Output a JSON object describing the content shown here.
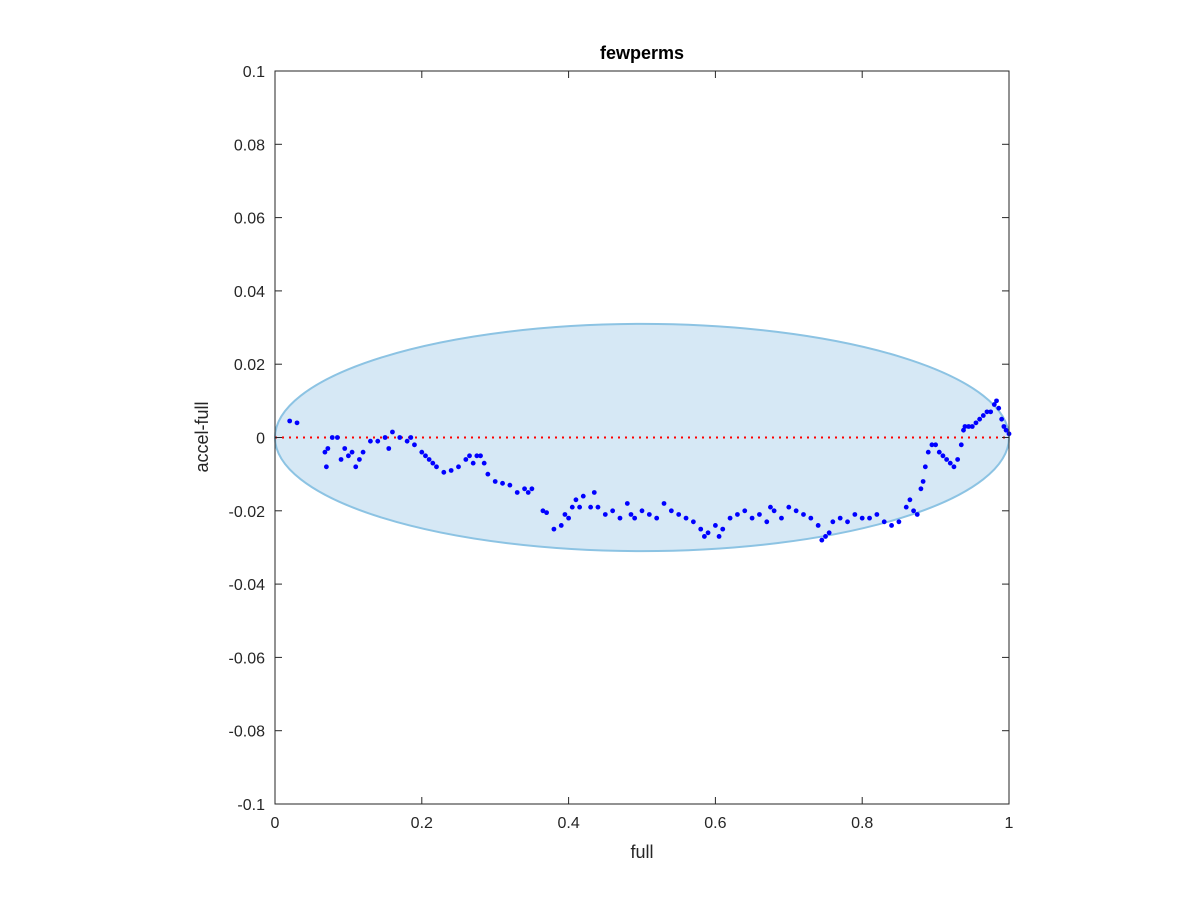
{
  "chart_data": {
    "type": "scatter",
    "title": "fewperms",
    "xlabel": "full",
    "ylabel": "accel-full",
    "xlim": [
      0,
      1
    ],
    "ylim": [
      -0.1,
      0.1
    ],
    "grid": false,
    "xticks": [
      0,
      0.2,
      0.4,
      0.6,
      0.8,
      1
    ],
    "xtick_labels": [
      "0",
      "0.2",
      "0.4",
      "0.6",
      "0.8",
      "1"
    ],
    "yticks": [
      -0.1,
      -0.08,
      -0.06,
      -0.04,
      -0.02,
      0,
      0.02,
      0.04,
      0.06,
      0.08,
      0.1
    ],
    "ytick_labels": [
      "-0.1",
      "-0.08",
      "-0.06",
      "-0.04",
      "-0.02",
      "0",
      "0.02",
      "0.04",
      "0.06",
      "0.08",
      "0.1"
    ],
    "reference_line": {
      "y": 0,
      "style": "dotted",
      "color": "#ff0000"
    },
    "ellipse": {
      "center": [
        0.5,
        0
      ],
      "radius_x": 0.5,
      "radius_y": 0.031,
      "fill": "#d6e8f5",
      "stroke": "#8cc3e3"
    },
    "marker_color": "#0000ff",
    "points": [
      [
        0.02,
        0.0045
      ],
      [
        0.03,
        0.004
      ],
      [
        0.068,
        -0.004
      ],
      [
        0.07,
        -0.008
      ],
      [
        0.072,
        -0.003
      ],
      [
        0.078,
        0.0
      ],
      [
        0.085,
        0.0
      ],
      [
        0.09,
        -0.006
      ],
      [
        0.095,
        -0.003
      ],
      [
        0.1,
        -0.005
      ],
      [
        0.105,
        -0.004
      ],
      [
        0.11,
        -0.008
      ],
      [
        0.115,
        -0.006
      ],
      [
        0.12,
        -0.004
      ],
      [
        0.13,
        -0.001
      ],
      [
        0.14,
        -0.001
      ],
      [
        0.15,
        0.0
      ],
      [
        0.155,
        -0.003
      ],
      [
        0.16,
        0.0015
      ],
      [
        0.17,
        0.0
      ],
      [
        0.18,
        -0.001
      ],
      [
        0.185,
        0.0
      ],
      [
        0.19,
        -0.002
      ],
      [
        0.2,
        -0.004
      ],
      [
        0.205,
        -0.005
      ],
      [
        0.21,
        -0.006
      ],
      [
        0.215,
        -0.007
      ],
      [
        0.22,
        -0.008
      ],
      [
        0.23,
        -0.0095
      ],
      [
        0.24,
        -0.009
      ],
      [
        0.25,
        -0.008
      ],
      [
        0.26,
        -0.006
      ],
      [
        0.265,
        -0.005
      ],
      [
        0.27,
        -0.007
      ],
      [
        0.275,
        -0.005
      ],
      [
        0.28,
        -0.005
      ],
      [
        0.285,
        -0.007
      ],
      [
        0.29,
        -0.01
      ],
      [
        0.3,
        -0.012
      ],
      [
        0.31,
        -0.0125
      ],
      [
        0.32,
        -0.013
      ],
      [
        0.33,
        -0.015
      ],
      [
        0.34,
        -0.014
      ],
      [
        0.345,
        -0.015
      ],
      [
        0.35,
        -0.014
      ],
      [
        0.365,
        -0.02
      ],
      [
        0.37,
        -0.0205
      ],
      [
        0.38,
        -0.025
      ],
      [
        0.39,
        -0.024
      ],
      [
        0.395,
        -0.021
      ],
      [
        0.4,
        -0.022
      ],
      [
        0.405,
        -0.019
      ],
      [
        0.41,
        -0.017
      ],
      [
        0.415,
        -0.019
      ],
      [
        0.42,
        -0.016
      ],
      [
        0.43,
        -0.019
      ],
      [
        0.435,
        -0.015
      ],
      [
        0.44,
        -0.019
      ],
      [
        0.45,
        -0.021
      ],
      [
        0.46,
        -0.02
      ],
      [
        0.47,
        -0.022
      ],
      [
        0.48,
        -0.018
      ],
      [
        0.485,
        -0.021
      ],
      [
        0.49,
        -0.022
      ],
      [
        0.5,
        -0.02
      ],
      [
        0.51,
        -0.021
      ],
      [
        0.52,
        -0.022
      ],
      [
        0.53,
        -0.018
      ],
      [
        0.54,
        -0.02
      ],
      [
        0.55,
        -0.021
      ],
      [
        0.56,
        -0.022
      ],
      [
        0.57,
        -0.023
      ],
      [
        0.58,
        -0.025
      ],
      [
        0.585,
        -0.027
      ],
      [
        0.59,
        -0.026
      ],
      [
        0.6,
        -0.024
      ],
      [
        0.605,
        -0.027
      ],
      [
        0.61,
        -0.025
      ],
      [
        0.62,
        -0.022
      ],
      [
        0.63,
        -0.021
      ],
      [
        0.64,
        -0.02
      ],
      [
        0.65,
        -0.022
      ],
      [
        0.66,
        -0.021
      ],
      [
        0.67,
        -0.023
      ],
      [
        0.675,
        -0.019
      ],
      [
        0.68,
        -0.02
      ],
      [
        0.69,
        -0.022
      ],
      [
        0.7,
        -0.019
      ],
      [
        0.71,
        -0.02
      ],
      [
        0.72,
        -0.021
      ],
      [
        0.73,
        -0.022
      ],
      [
        0.74,
        -0.024
      ],
      [
        0.745,
        -0.028
      ],
      [
        0.75,
        -0.027
      ],
      [
        0.755,
        -0.026
      ],
      [
        0.76,
        -0.023
      ],
      [
        0.77,
        -0.022
      ],
      [
        0.78,
        -0.023
      ],
      [
        0.79,
        -0.021
      ],
      [
        0.8,
        -0.022
      ],
      [
        0.81,
        -0.022
      ],
      [
        0.82,
        -0.021
      ],
      [
        0.83,
        -0.023
      ],
      [
        0.84,
        -0.024
      ],
      [
        0.85,
        -0.023
      ],
      [
        0.86,
        -0.019
      ],
      [
        0.865,
        -0.017
      ],
      [
        0.87,
        -0.02
      ],
      [
        0.875,
        -0.021
      ],
      [
        0.88,
        -0.014
      ],
      [
        0.883,
        -0.012
      ],
      [
        0.886,
        -0.008
      ],
      [
        0.89,
        -0.004
      ],
      [
        0.895,
        -0.002
      ],
      [
        0.9,
        -0.002
      ],
      [
        0.905,
        -0.004
      ],
      [
        0.91,
        -0.005
      ],
      [
        0.915,
        -0.006
      ],
      [
        0.92,
        -0.007
      ],
      [
        0.925,
        -0.008
      ],
      [
        0.93,
        -0.006
      ],
      [
        0.935,
        -0.002
      ],
      [
        0.938,
        0.002
      ],
      [
        0.94,
        0.003
      ],
      [
        0.945,
        0.003
      ],
      [
        0.95,
        0.003
      ],
      [
        0.955,
        0.004
      ],
      [
        0.96,
        0.005
      ],
      [
        0.965,
        0.006
      ],
      [
        0.97,
        0.007
      ],
      [
        0.975,
        0.007
      ],
      [
        0.98,
        0.009
      ],
      [
        0.983,
        0.01
      ],
      [
        0.986,
        0.008
      ],
      [
        0.99,
        0.005
      ],
      [
        0.993,
        0.003
      ],
      [
        0.996,
        0.002
      ],
      [
        1.0,
        0.001
      ]
    ]
  }
}
